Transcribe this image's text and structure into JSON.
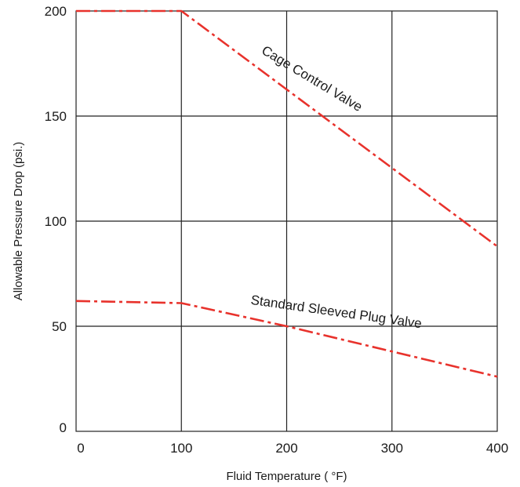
{
  "chart_data": {
    "type": "line",
    "title": "",
    "xlabel": "Fluid Temperature ( °F)",
    "ylabel": "Allowable Pressure Drop (psi.)",
    "xlim": [
      0,
      400
    ],
    "ylim": [
      0,
      200
    ],
    "x_ticks": [
      0,
      100,
      200,
      300,
      400
    ],
    "x_tick_labels": [
      "0",
      "100",
      "200",
      "300",
      "400"
    ],
    "y_ticks": [
      0,
      50,
      100,
      150,
      200
    ],
    "y_tick_labels": [
      "0",
      "50",
      "100",
      "150",
      "200"
    ],
    "grid": true,
    "legend": "none",
    "line_style": "dash-dot",
    "line_color": "#e8322c",
    "series": [
      {
        "name": "Cage Control Valve",
        "x": [
          0,
          100,
          400
        ],
        "y": [
          200,
          200,
          88
        ]
      },
      {
        "name": "Standard Sleeved Plug Valve",
        "x": [
          0,
          100,
          200,
          300,
          400
        ],
        "y": [
          62,
          61,
          50,
          38,
          26
        ]
      }
    ]
  }
}
